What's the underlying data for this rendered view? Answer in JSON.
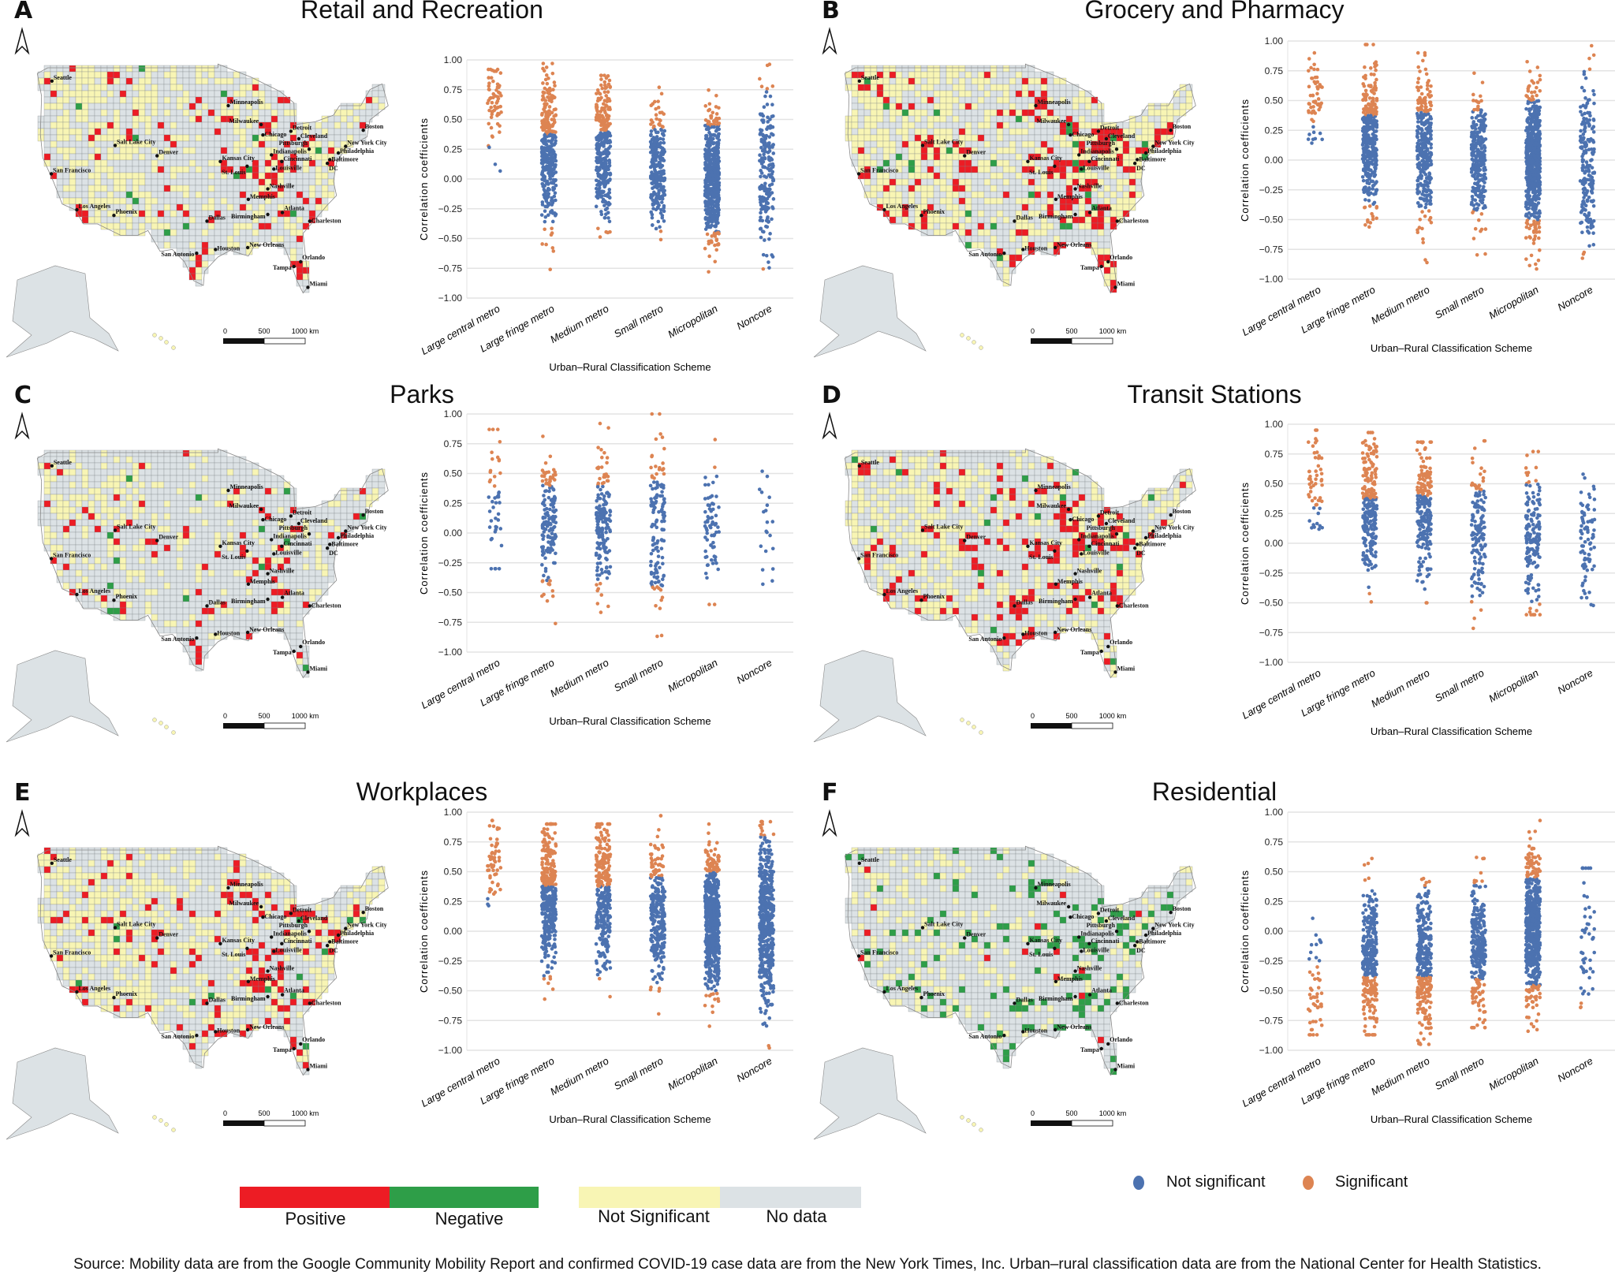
{
  "panels": [
    {
      "letter": "A",
      "title": "Retail and Recreation"
    },
    {
      "letter": "B",
      "title": "Grocery and Pharmacy"
    },
    {
      "letter": "C",
      "title": "Parks"
    },
    {
      "letter": "D",
      "title": "Transit Stations"
    },
    {
      "letter": "E",
      "title": "Workplaces"
    },
    {
      "letter": "F",
      "title": "Residential"
    }
  ],
  "map": {
    "cities": [
      "Seattle",
      "Salt Lake City",
      "San Francisco",
      "Los Angeles",
      "Phoenix",
      "Denver",
      "Minneapolis",
      "Milwaukee",
      "Chicago",
      "Detroit",
      "Cleveland",
      "Pittsburgh",
      "New York City",
      "Boston",
      "Philadelphia",
      "Baltimore",
      "DC",
      "Indianapolis",
      "Cincinnati",
      "Kansas City",
      "St. Louis",
      "Louisville",
      "Nashville",
      "Memphis",
      "Atlanta",
      "Birmingham",
      "Charleston",
      "Dallas",
      "San Antonio",
      "Houston",
      "New Orleans",
      "Orlando",
      "Tampa",
      "Miami"
    ],
    "scale_labels": [
      "0",
      "500",
      "1000 km"
    ]
  },
  "chart_data": [
    {
      "type": "scatter",
      "title": "Retail and Recreation",
      "ylabel": "Correlation coefficients",
      "xlabel": "Urban–Rural Classification Scheme",
      "ylim": [
        -1,
        1
      ],
      "yticks": [
        -1,
        -0.75,
        -0.5,
        -0.25,
        0,
        0.25,
        0.5,
        0.75,
        1
      ],
      "ytick_labels": [
        "−1.00",
        "−0.75",
        "−0.50",
        "−0.25",
        "0.00",
        "0.25",
        "0.50",
        "0.75",
        "1.00"
      ],
      "categories": [
        "Large central metro",
        "Large fringe metro",
        "Medium metro",
        "Small metro",
        "Micropolitan",
        "Noncore"
      ],
      "distribution": [
        {
          "n": 60,
          "mean": 0.6,
          "sd": 0.2,
          "min": -0.05,
          "max": 0.92,
          "sig_abs": 0.27
        },
        {
          "n": 350,
          "mean": 0.25,
          "sd": 0.3,
          "min": -0.9,
          "max": 0.97,
          "sig_abs": 0.38
        },
        {
          "n": 340,
          "mean": 0.2,
          "sd": 0.3,
          "min": -0.95,
          "max": 0.87,
          "sig_abs": 0.4
        },
        {
          "n": 270,
          "mean": 0.1,
          "sd": 0.25,
          "min": -0.7,
          "max": 0.77,
          "sig_abs": 0.42
        },
        {
          "n": 600,
          "mean": 0.0,
          "sd": 0.25,
          "min": -0.97,
          "max": 0.9,
          "sig_abs": 0.45
        },
        {
          "n": 200,
          "mean": 0.05,
          "sd": 0.35,
          "min": -0.97,
          "max": 0.98,
          "sig_abs": 0.75
        }
      ]
    },
    {
      "type": "scatter",
      "title": "Grocery and Pharmacy",
      "ylabel": "Correlation coefficients",
      "xlabel": "Urban–Rural Classification Scheme",
      "ylim": [
        -1,
        1
      ],
      "yticks": [
        -1,
        -0.75,
        -0.5,
        -0.25,
        0,
        0.25,
        0.5,
        0.75,
        1
      ],
      "ytick_labels": [
        "−1.00",
        "−0.75",
        "−0.50",
        "−0.25",
        "0.00",
        "0.25",
        "0.50",
        "0.75",
        "1.00"
      ],
      "categories": [
        "Large central metro",
        "Large fringe metro",
        "Medium metro",
        "Small metro",
        "Micropolitan",
        "Noncore"
      ],
      "distribution": [
        {
          "n": 55,
          "mean": 0.5,
          "sd": 0.2,
          "min": -0.15,
          "max": 0.9,
          "sig_abs": 0.3
        },
        {
          "n": 380,
          "mean": 0.15,
          "sd": 0.3,
          "min": -0.83,
          "max": 0.97,
          "sig_abs": 0.38
        },
        {
          "n": 330,
          "mean": 0.1,
          "sd": 0.3,
          "min": -0.96,
          "max": 0.9,
          "sig_abs": 0.4
        },
        {
          "n": 280,
          "mean": 0.0,
          "sd": 0.25,
          "min": -0.9,
          "max": 0.82,
          "sig_abs": 0.42
        },
        {
          "n": 600,
          "mean": 0.0,
          "sd": 0.3,
          "min": -1.0,
          "max": 1.0,
          "sig_abs": 0.5
        },
        {
          "n": 200,
          "mean": 0.0,
          "sd": 0.4,
          "min": -1.0,
          "max": 0.98,
          "sig_abs": 0.75
        }
      ]
    },
    {
      "type": "scatter",
      "title": "Parks",
      "ylabel": "Correlation coefficients",
      "xlabel": "Urban–Rural Classification Scheme",
      "ylim": [
        -1,
        1
      ],
      "yticks": [
        -1,
        -0.75,
        -0.5,
        -0.25,
        0,
        0.25,
        0.5,
        0.75,
        1
      ],
      "ytick_labels": [
        "−1.00",
        "−0.75",
        "−0.50",
        "−0.25",
        "0.00",
        "0.25",
        "0.50",
        "0.75",
        "1.00"
      ],
      "categories": [
        "Large central metro",
        "Large fringe metro",
        "Medium metro",
        "Small metro",
        "Micropolitan",
        "Noncore"
      ],
      "distribution": [
        {
          "n": 45,
          "mean": 0.3,
          "sd": 0.3,
          "min": -0.3,
          "max": 0.87,
          "sig_abs": 0.35
        },
        {
          "n": 160,
          "mean": 0.1,
          "sd": 0.3,
          "min": -0.82,
          "max": 0.9,
          "sig_abs": 0.4
        },
        {
          "n": 170,
          "mean": 0.1,
          "sd": 0.3,
          "min": -0.83,
          "max": 0.92,
          "sig_abs": 0.4
        },
        {
          "n": 140,
          "mean": 0.05,
          "sd": 0.35,
          "min": -0.92,
          "max": 1.0,
          "sig_abs": 0.45
        },
        {
          "n": 70,
          "mean": 0.05,
          "sd": 0.3,
          "min": -0.6,
          "max": 0.92,
          "sig_abs": 0.5
        },
        {
          "n": 20,
          "mean": 0.05,
          "sd": 0.35,
          "min": -0.43,
          "max": 0.83,
          "sig_abs": 0.85
        }
      ]
    },
    {
      "type": "scatter",
      "title": "Transit Stations",
      "ylabel": "Correlation coefficients",
      "xlabel": "Urban–Rural Classification Scheme",
      "ylim": [
        -1,
        1
      ],
      "yticks": [
        -1,
        -0.75,
        -0.5,
        -0.25,
        0,
        0.25,
        0.5,
        0.75,
        1
      ],
      "ytick_labels": [
        "−1.00",
        "−0.75",
        "−0.50",
        "−0.25",
        "0.00",
        "0.25",
        "0.50",
        "0.75",
        "1.00"
      ],
      "categories": [
        "Large central metro",
        "Large fringe metro",
        "Medium metro",
        "Small metro",
        "Micropolitan",
        "Noncore"
      ],
      "distribution": [
        {
          "n": 55,
          "mean": 0.6,
          "sd": 0.25,
          "min": -0.28,
          "max": 0.95,
          "sig_abs": 0.3
        },
        {
          "n": 250,
          "mean": 0.3,
          "sd": 0.3,
          "min": -0.58,
          "max": 0.93,
          "sig_abs": 0.38
        },
        {
          "n": 230,
          "mean": 0.3,
          "sd": 0.3,
          "min": -0.5,
          "max": 0.85,
          "sig_abs": 0.4
        },
        {
          "n": 150,
          "mean": 0.1,
          "sd": 0.3,
          "min": -0.86,
          "max": 0.86,
          "sig_abs": 0.45
        },
        {
          "n": 170,
          "mean": 0.05,
          "sd": 0.3,
          "min": -0.6,
          "max": 0.77,
          "sig_abs": 0.5
        },
        {
          "n": 80,
          "mean": 0.0,
          "sd": 0.3,
          "min": -0.87,
          "max": 0.58,
          "sig_abs": 0.6
        }
      ]
    },
    {
      "type": "scatter",
      "title": "Workplaces",
      "ylabel": "Correlation coefficients",
      "xlabel": "Urban–Rural Classification Scheme",
      "ylim": [
        -1,
        1
      ],
      "yticks": [
        -1,
        -0.75,
        -0.5,
        -0.25,
        0,
        0.25,
        0.5,
        0.75,
        1
      ],
      "ytick_labels": [
        "−1.00",
        "−0.75",
        "−0.50",
        "−0.25",
        "0.00",
        "0.25",
        "0.50",
        "0.75",
        "1.00"
      ],
      "categories": [
        "Large central metro",
        "Large fringe metro",
        "Medium metro",
        "Small metro",
        "Micropolitan",
        "Noncore"
      ],
      "distribution": [
        {
          "n": 55,
          "mean": 0.6,
          "sd": 0.2,
          "min": -0.05,
          "max": 0.93,
          "sig_abs": 0.3
        },
        {
          "n": 380,
          "mean": 0.3,
          "sd": 0.3,
          "min": -0.57,
          "max": 0.9,
          "sig_abs": 0.38
        },
        {
          "n": 330,
          "mean": 0.3,
          "sd": 0.3,
          "min": -0.55,
          "max": 0.9,
          "sig_abs": 0.38
        },
        {
          "n": 280,
          "mean": 0.15,
          "sd": 0.3,
          "min": -0.82,
          "max": 0.97,
          "sig_abs": 0.45
        },
        {
          "n": 600,
          "mean": 0.1,
          "sd": 0.3,
          "min": -0.93,
          "max": 0.9,
          "sig_abs": 0.5
        },
        {
          "n": 500,
          "mean": 0.05,
          "sd": 0.35,
          "min": -0.98,
          "max": 0.92,
          "sig_abs": 0.8
        }
      ]
    },
    {
      "type": "scatter",
      "title": "Residential",
      "ylabel": "Correlation coefficients",
      "xlabel": "Urban–Rural Classification Scheme",
      "ylim": [
        -1,
        1
      ],
      "yticks": [
        -1,
        -0.75,
        -0.5,
        -0.25,
        0,
        0.25,
        0.5,
        0.75,
        1
      ],
      "ytick_labels": [
        "−1.00",
        "−0.75",
        "−0.50",
        "−0.25",
        "0.00",
        "0.25",
        "0.50",
        "0.75",
        "1.00"
      ],
      "categories": [
        "Large central metro",
        "Large fringe metro",
        "Medium metro",
        "Small metro",
        "Micropolitan",
        "Noncore"
      ],
      "distribution": [
        {
          "n": 50,
          "mean": -0.5,
          "sd": 0.25,
          "min": -0.87,
          "max": 0.27,
          "sig_abs": 0.3
        },
        {
          "n": 330,
          "mean": -0.25,
          "sd": 0.3,
          "min": -0.87,
          "max": 0.9,
          "sig_abs": 0.38
        },
        {
          "n": 330,
          "mean": -0.25,
          "sd": 0.3,
          "min": -0.95,
          "max": 0.82,
          "sig_abs": 0.38
        },
        {
          "n": 280,
          "mean": -0.15,
          "sd": 0.25,
          "min": -0.81,
          "max": 0.62,
          "sig_abs": 0.4
        },
        {
          "n": 600,
          "mean": 0.0,
          "sd": 0.3,
          "min": -0.84,
          "max": 0.93,
          "sig_abs": 0.45
        },
        {
          "n": 50,
          "mean": 0.0,
          "sd": 0.3,
          "min": -0.75,
          "max": 0.53,
          "sig_abs": 0.6
        }
      ]
    }
  ],
  "legend": {
    "map_items": [
      {
        "label": "Positive",
        "color": "#ed1c24"
      },
      {
        "label": "Negative",
        "color": "#2e9e48"
      },
      {
        "label": "Not Significant",
        "color": "#f8f5b4"
      },
      {
        "label": "No data",
        "color": "#dce2e5"
      }
    ],
    "dot_items": [
      {
        "label": "Not significant",
        "color": "#4c72b0"
      },
      {
        "label": "Significant",
        "color": "#dd8452"
      }
    ]
  },
  "source": "Source: Mobility data are from the Google Community Mobility Report and confirmed COVID-19 case data are from the New York Times, Inc. Urban–rural classification data are from the National Center for Health Statistics."
}
